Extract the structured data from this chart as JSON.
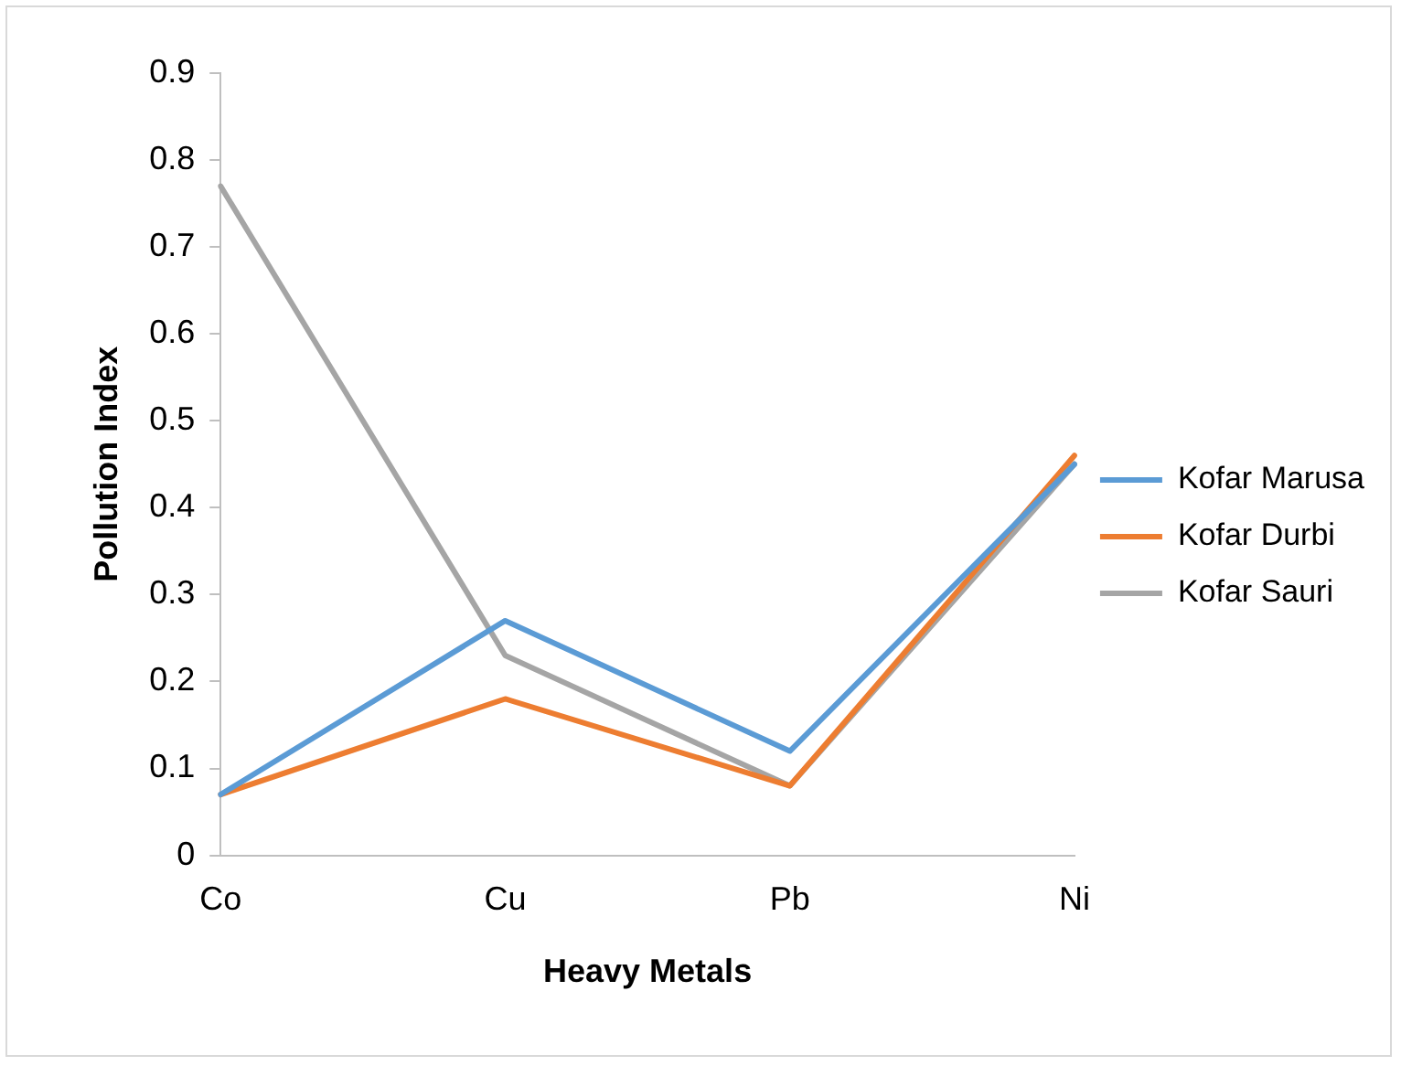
{
  "chart_data": {
    "type": "line",
    "xlabel": "Heavy Metals",
    "ylabel": "Pollution Index",
    "categories": [
      "Co",
      "Cu",
      "Pb",
      "Ni"
    ],
    "series": [
      {
        "name": "Kofar Marusa",
        "color": "#5b9bd5",
        "values": [
          0.07,
          0.27,
          0.12,
          0.45
        ]
      },
      {
        "name": "Kofar Durbi",
        "color": "#ed7d31",
        "values": [
          0.07,
          0.18,
          0.08,
          0.46
        ]
      },
      {
        "name": "Kofar Sauri",
        "color": "#a5a5a5",
        "values": [
          0.77,
          0.23,
          0.08,
          0.45
        ]
      }
    ],
    "ylim": [
      0,
      0.9
    ],
    "yticks": [
      0,
      0.1,
      0.2,
      0.3,
      0.4,
      0.5,
      0.6,
      0.7,
      0.8,
      0.9
    ],
    "grid": false,
    "legend": "right",
    "marker": "none",
    "line_style": "solid"
  }
}
